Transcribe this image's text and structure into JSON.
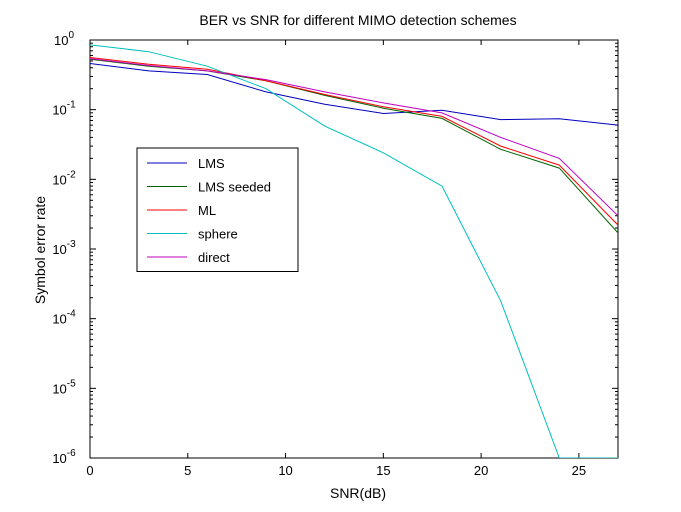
{
  "chart_data": {
    "type": "line",
    "title": "BER vs SNR for different MIMO detection schemes",
    "xlabel": "SNR(dB)",
    "ylabel": "Symbol error rate",
    "xlim": [
      0,
      27
    ],
    "ylim": [
      1e-06,
      1
    ],
    "yscale": "log",
    "xticks": [
      0,
      5,
      10,
      15,
      20,
      25
    ],
    "yticks": [
      {
        "value": 1e-06,
        "base": "10",
        "exp": "-6"
      },
      {
        "value": 1e-05,
        "base": "10",
        "exp": "-5"
      },
      {
        "value": 0.0001,
        "base": "10",
        "exp": "-4"
      },
      {
        "value": 0.001,
        "base": "10",
        "exp": "-3"
      },
      {
        "value": 0.01,
        "base": "10",
        "exp": "-2"
      },
      {
        "value": 0.1,
        "base": "10",
        "exp": "-1"
      },
      {
        "value": 1,
        "base": "10",
        "exp": "0"
      }
    ],
    "grid": false,
    "legend_position": "left-middle",
    "series": [
      {
        "name": "LMS",
        "color": "#0000bf",
        "x": [
          0,
          3,
          6,
          9,
          12,
          15,
          18,
          21,
          24,
          27
        ],
        "y": [
          0.46,
          0.36,
          0.32,
          0.18,
          0.12,
          0.088,
          0.098,
          0.072,
          0.074,
          0.06
        ]
      },
      {
        "name": "LMS seeded",
        "color": "#006400",
        "x": [
          0,
          3,
          6,
          9,
          12,
          15,
          18,
          21,
          24,
          27
        ],
        "y": [
          0.53,
          0.42,
          0.36,
          0.26,
          0.16,
          0.105,
          0.075,
          0.027,
          0.0145,
          0.0017
        ]
      },
      {
        "name": "ML",
        "color": "#ff0000",
        "x": [
          0,
          3,
          6,
          9,
          12,
          15,
          18,
          21,
          24,
          27
        ],
        "y": [
          0.56,
          0.45,
          0.38,
          0.26,
          0.165,
          0.11,
          0.08,
          0.03,
          0.016,
          0.0022
        ]
      },
      {
        "name": "sphere",
        "color": "#00bfbf",
        "x": [
          0,
          3,
          6,
          9,
          12,
          15,
          18,
          21,
          24,
          27
        ],
        "y": [
          0.85,
          0.68,
          0.42,
          0.2,
          0.058,
          0.024,
          0.008,
          0.00018,
          1e-06,
          1e-06
        ]
      },
      {
        "name": "direct",
        "color": "#bf00bf",
        "x": [
          0,
          3,
          6,
          9,
          12,
          15,
          18,
          21,
          24,
          27
        ],
        "y": [
          0.54,
          0.43,
          0.36,
          0.27,
          0.18,
          0.125,
          0.09,
          0.04,
          0.02,
          0.003
        ]
      }
    ]
  }
}
